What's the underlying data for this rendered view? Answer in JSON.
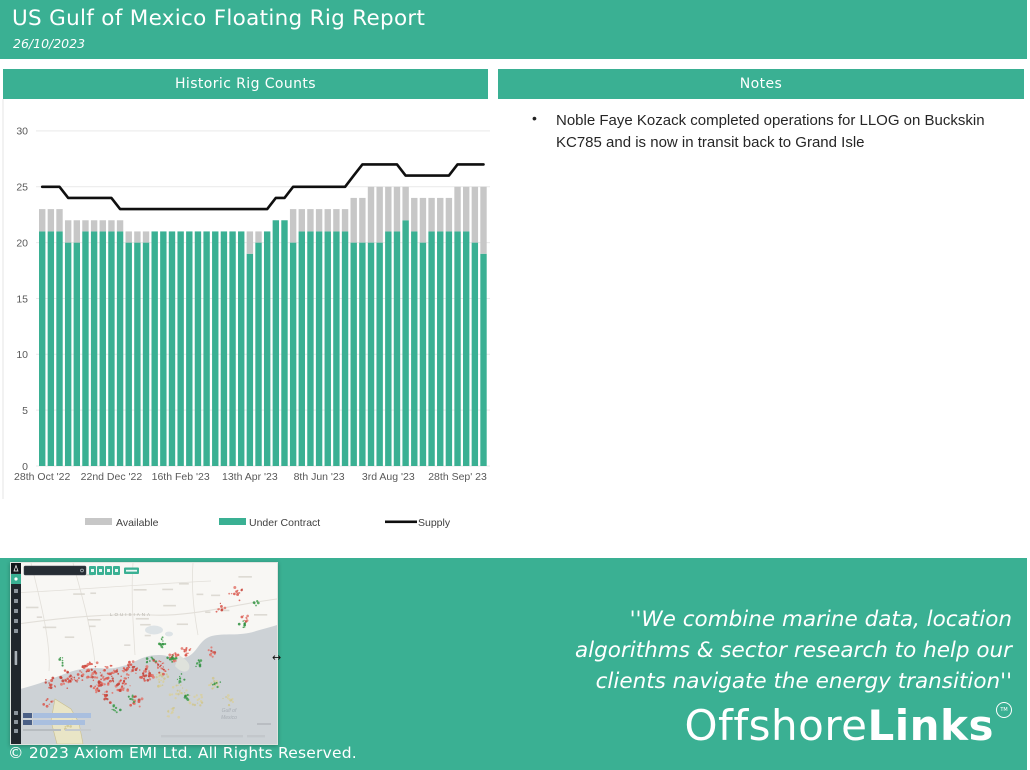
{
  "header": {
    "title": "US Gulf of Mexico Floating Rig Report",
    "date": "26/10/2023"
  },
  "sections": {
    "left_header": "Historic Rig Counts",
    "right_header": "Notes"
  },
  "notes": {
    "bullet": "•",
    "items": [
      "Noble Faye Kozack completed operations for LLOG on Buckskin KC785 and is now in transit back to Grand Isle"
    ]
  },
  "chart_data": {
    "type": "bar",
    "subtype": "stacked-bars-with-line-overlay",
    "title": "Historic Rig Counts",
    "x_tick_labels": [
      "28th Oct '22",
      "22nd Dec '22",
      "16th Feb '23",
      "13th Apr '23",
      "8th Jun '23",
      "3rd Aug '23",
      "28th Sep' 23"
    ],
    "x_tick_indices": [
      0,
      8,
      16,
      24,
      32,
      40,
      48
    ],
    "y_ticks": [
      0,
      5,
      10,
      15,
      20,
      25,
      30
    ],
    "ylim": [
      0,
      30
    ],
    "grid": "horizontal",
    "legend_position": "bottom",
    "legend": [
      "Available",
      "Under Contract",
      "Supply"
    ],
    "series": [
      {
        "name": "Under Contract",
        "type": "bar",
        "color": "#3ab093",
        "values": [
          21,
          21,
          21,
          20,
          20,
          21,
          21,
          21,
          21,
          21,
          20,
          20,
          20,
          21,
          21,
          21,
          21,
          21,
          21,
          21,
          21,
          21,
          21,
          21,
          19,
          20,
          21,
          22,
          22,
          20,
          21,
          21,
          21,
          21,
          21,
          21,
          20,
          20,
          20,
          20,
          21,
          21,
          22,
          21,
          20,
          21,
          21,
          21,
          21,
          21,
          20,
          19
        ]
      },
      {
        "name": "Available",
        "type": "bar",
        "color": "#c7c7c7",
        "values": [
          2,
          2,
          2,
          2,
          2,
          1,
          1,
          1,
          1,
          1,
          1,
          1,
          1,
          0,
          0,
          0,
          0,
          0,
          0,
          0,
          0,
          0,
          0,
          0,
          2,
          1,
          0,
          0,
          0,
          3,
          2,
          2,
          2,
          2,
          2,
          2,
          4,
          4,
          5,
          5,
          4,
          4,
          3,
          3,
          4,
          3,
          3,
          3,
          4,
          4,
          5,
          6
        ]
      },
      {
        "name": "Supply",
        "type": "line",
        "color": "#0f0f0f",
        "values": [
          25,
          25,
          25,
          24,
          24,
          24,
          24,
          24,
          24,
          23,
          23,
          23,
          23,
          23,
          23,
          23,
          23,
          23,
          23,
          23,
          23,
          23,
          23,
          23,
          23,
          23,
          23,
          24,
          24,
          25,
          25,
          25,
          25,
          25,
          25,
          25,
          26,
          27,
          27,
          27,
          27,
          27,
          26,
          26,
          26,
          26,
          26,
          26,
          27,
          27,
          27,
          27
        ]
      }
    ]
  },
  "map": {
    "labels": {
      "region": "LOUISIANA",
      "water_line1": "Gulf of",
      "water_line2": "Mexico"
    }
  },
  "footer": {
    "copyright": "© 2023 Axiom EMI Ltd. All Rights Reserved.",
    "quote": {
      "lines": [
        "''We  combine marine data, location",
        "algorithms & sector research to help our",
        "clients navigate the energy transition''"
      ]
    },
    "brand": {
      "regular": "Offshore",
      "bold": "Links",
      "tm": "TM"
    }
  },
  "colors": {
    "teal": "#3ab093",
    "available_gray": "#c7c7c7",
    "supply_black": "#0f0f0f"
  }
}
